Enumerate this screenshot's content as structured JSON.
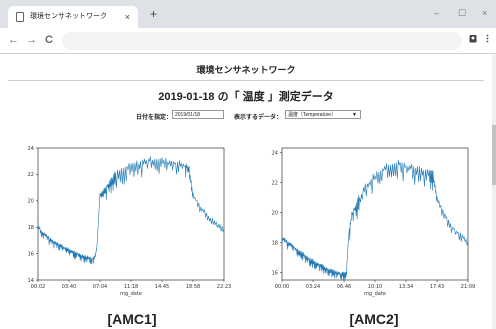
{
  "browser": {
    "tab_title": "環境センサネットワーク",
    "tab_close": "×",
    "new_tab": "+",
    "window_controls": [
      "–",
      "☐",
      "×"
    ],
    "nav": {
      "back": "←",
      "forward": "→",
      "reload": "C"
    },
    "icons": [
      "profile-icon",
      "menu-icon"
    ]
  },
  "page": {
    "site_title": "環境センサネットワーク",
    "heading": "2019-01-18 の「 温度 」測定データ",
    "date_label": "日付を指定：",
    "date_value": "2019/01/18",
    "display_label": "表示するデータ：",
    "display_value": "温度（Temperature）",
    "select_arrow": "▼"
  },
  "chart_data": [
    {
      "type": "line",
      "title": "[AMC1]",
      "xlabel": "mg_date",
      "ylabel": "",
      "x_tick_labels": [
        "00:02",
        "03:40",
        "07:04",
        "11:18",
        "14:45",
        "18:58",
        "22:23"
      ],
      "y_ticks": [
        14,
        16,
        18,
        20,
        22,
        24
      ],
      "ylim": [
        14,
        24
      ],
      "xlim": [
        0,
        24
      ],
      "grid": false,
      "series": [
        {
          "color": "#1f77b4",
          "x": [
            0,
            0.5,
            1,
            1.5,
            2,
            2.5,
            3,
            3.5,
            4,
            4.5,
            5,
            5.5,
            6,
            6.5,
            7,
            7.3,
            7.6,
            8,
            8.5,
            9,
            9.5,
            10,
            11,
            12,
            13,
            14,
            15,
            16,
            17,
            18,
            19,
            19.5,
            20,
            21,
            22,
            23,
            24
          ],
          "y": [
            18.2,
            17.6,
            17.4,
            17.1,
            16.9,
            16.8,
            16.6,
            16.4,
            16.3,
            16.1,
            16.0,
            15.9,
            15.8,
            15.7,
            15.6,
            15.7,
            16.5,
            20.5,
            20.8,
            21.2,
            21.6,
            22.0,
            22.3,
            22.6,
            22.8,
            23.0,
            23.1,
            23.0,
            22.9,
            22.8,
            22.6,
            22.4,
            20.5,
            19.5,
            18.8,
            18.3,
            17.9
          ]
        }
      ]
    },
    {
      "type": "line",
      "title": "[AMC2]",
      "xlabel": "mg_date",
      "ylabel": "",
      "x_tick_labels": [
        "00:00",
        "03:24",
        "06:46",
        "10:10",
        "13:34",
        "17:43",
        "21:09"
      ],
      "y_ticks": [
        16,
        18,
        20,
        22,
        24
      ],
      "ylim": [
        15.5,
        24.3
      ],
      "xlim": [
        0,
        24
      ],
      "grid": false,
      "series": [
        {
          "color": "#1f77b4",
          "x": [
            0,
            0.5,
            1,
            1.5,
            2,
            2.5,
            3,
            3.5,
            4,
            4.5,
            5,
            5.5,
            6,
            6.5,
            7,
            7.5,
            8,
            8.3,
            8.6,
            9,
            9.5,
            10,
            11,
            12,
            13,
            14,
            15,
            16,
            17,
            18,
            19,
            19.5,
            20,
            21,
            22,
            23,
            24
          ],
          "y": [
            18.3,
            18.1,
            17.9,
            17.7,
            17.5,
            17.3,
            17.1,
            16.9,
            16.8,
            16.6,
            16.5,
            16.3,
            16.2,
            16.1,
            16.0,
            15.9,
            15.9,
            16.0,
            18.5,
            19.8,
            20.4,
            21.0,
            21.8,
            22.4,
            22.8,
            23.1,
            23.2,
            23.0,
            22.9,
            22.8,
            22.7,
            22.5,
            21.0,
            19.8,
            19.0,
            18.5,
            18.1
          ]
        }
      ]
    }
  ]
}
